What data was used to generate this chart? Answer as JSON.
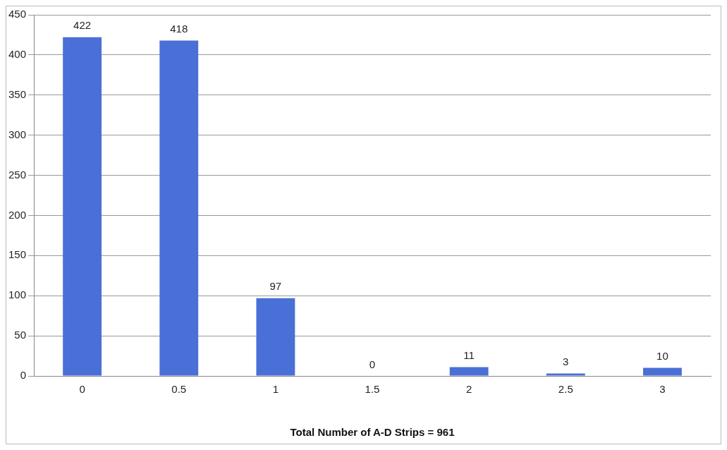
{
  "chart_data": {
    "type": "bar",
    "xlabel": "Total Number of A-D Strips = 961",
    "categories": [
      "0",
      "0.5",
      "1",
      "1.5",
      "2",
      "2.5",
      "3"
    ],
    "values": [
      422,
      418,
      97,
      0,
      11,
      3,
      10
    ],
    "color": "#4a6fd6",
    "ylim": [
      0,
      450
    ],
    "yticks": [
      0,
      50,
      100,
      150,
      200,
      250,
      300,
      350,
      400,
      450
    ],
    "grid": "y",
    "data_labels": true
  }
}
